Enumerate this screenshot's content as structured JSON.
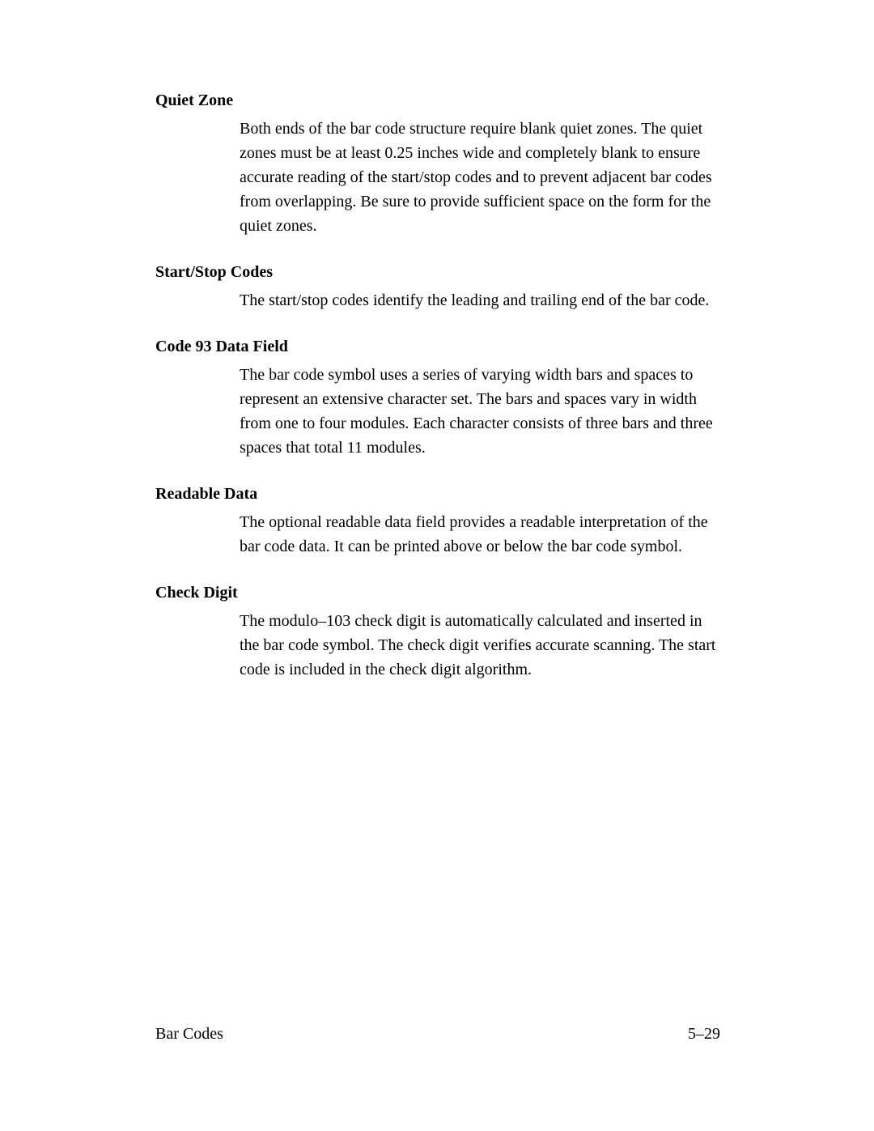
{
  "sections": [
    {
      "heading": "Quiet Zone",
      "body": "Both ends of the bar code structure require blank quiet zones. The quiet zones must be at least 0.25 inches wide and completely blank to ensure accurate reading of the start/stop codes and to prevent adjacent bar codes from overlapping. Be sure to provide sufficient space on the form for the quiet zones."
    },
    {
      "heading": "Start/Stop Codes",
      "body": "The start/stop codes identify the leading and trailing end of the bar code."
    },
    {
      "heading": "Code 93 Data Field",
      "body": "The bar code symbol uses a series of varying width bars and spaces to represent an extensive character set. The bars and spaces vary in width from one to four modules. Each character consists of three bars and three spaces that total 11 modules."
    },
    {
      "heading": "Readable Data",
      "body": "The optional readable data field provides a readable interpretation of the bar code data. It can be printed above or below the bar code symbol."
    },
    {
      "heading": "Check Digit",
      "body": "The modulo–103 check digit is automatically calculated and inserted in the bar code symbol. The check digit verifies accurate scanning. The start code is included in the check digit algorithm."
    }
  ],
  "footer": {
    "left": "Bar Codes",
    "right": "5–29"
  },
  "colors": {
    "background": "#ffffff",
    "text": "#000000"
  },
  "typography": {
    "body_fontsize": 20,
    "heading_fontsize": 20,
    "line_height": 1.5,
    "font_family": "Georgia, Times New Roman, serif"
  }
}
